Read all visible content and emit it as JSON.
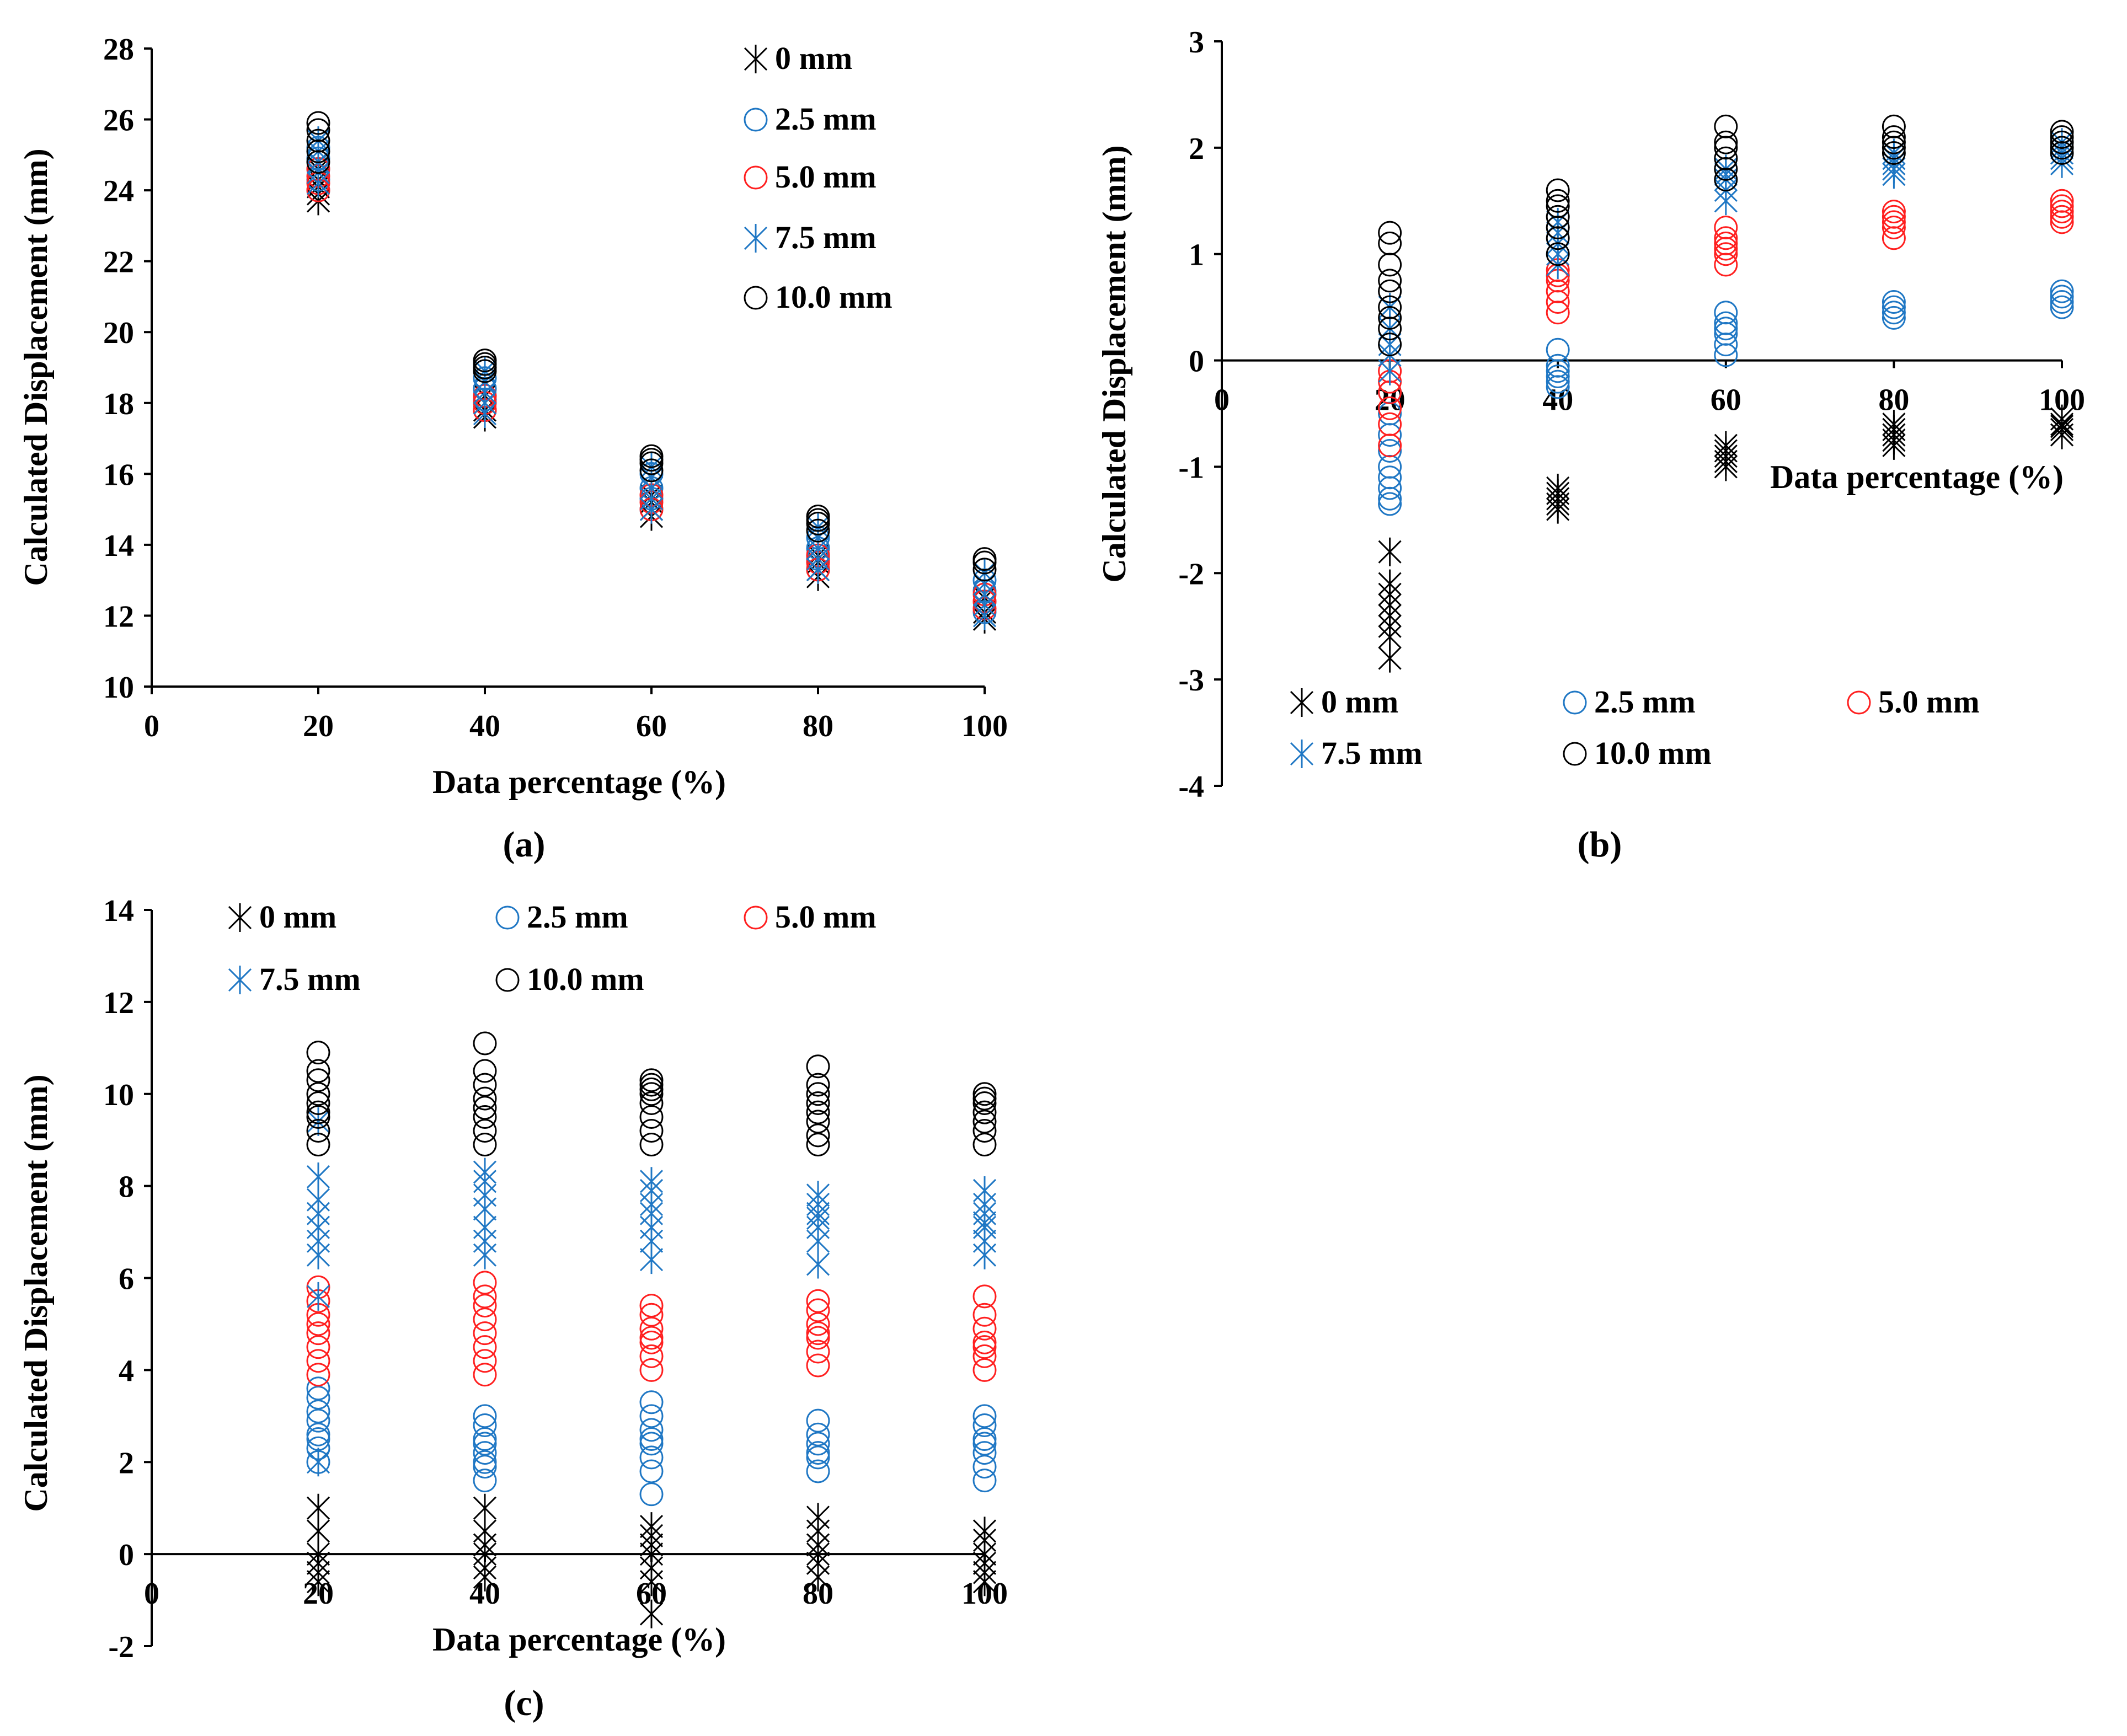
{
  "chart_data": [
    {
      "type": "scatter",
      "panel_label": "a",
      "title": "",
      "xlabel": "Data percentage (%)",
      "ylabel": "Calculated Displacement (mm)",
      "xlim": [
        0,
        100
      ],
      "ylim": [
        10,
        28
      ],
      "xticks": [
        "0",
        "20",
        "40",
        "60",
        "80",
        "100"
      ],
      "yticks": [
        "10",
        "12",
        "14",
        "16",
        "18",
        "20",
        "22",
        "24",
        "26",
        "28"
      ],
      "legend_position": "top-right",
      "legend_columns": 1,
      "series": [
        {
          "name": "0 mm",
          "marker": "star",
          "color": "#000000",
          "x": [
            20,
            20,
            20,
            20,
            20,
            40,
            40,
            40,
            40,
            60,
            60,
            60,
            60,
            60,
            80,
            80,
            80,
            80,
            100,
            100,
            100,
            100
          ],
          "y": [
            23.7,
            23.9,
            24.1,
            24.3,
            24.6,
            17.6,
            17.8,
            18.0,
            18.2,
            14.8,
            15.0,
            15.2,
            15.4,
            15.6,
            13.1,
            13.3,
            13.5,
            13.7,
            11.9,
            12.1,
            12.3,
            12.5
          ]
        },
        {
          "name": "2.5 mm",
          "marker": "circle",
          "color": "#1f77c4",
          "x": [
            20,
            20,
            20,
            20,
            20,
            40,
            40,
            40,
            40,
            60,
            60,
            60,
            60,
            80,
            80,
            80,
            80,
            100,
            100,
            100,
            100
          ],
          "y": [
            24.0,
            24.3,
            24.6,
            24.9,
            25.2,
            17.8,
            18.1,
            18.4,
            18.7,
            15.0,
            15.3,
            15.6,
            16.0,
            13.3,
            13.6,
            13.9,
            14.2,
            12.1,
            12.4,
            12.7,
            13.0
          ]
        },
        {
          "name": "5.0 mm",
          "marker": "circle",
          "color": "#ff1f1f",
          "x": [
            20,
            20,
            20,
            20,
            40,
            40,
            40,
            60,
            60,
            60,
            80,
            80,
            80,
            100,
            100,
            100
          ],
          "y": [
            24.0,
            24.2,
            24.4,
            24.6,
            17.8,
            18.0,
            18.2,
            15.0,
            15.2,
            15.4,
            13.3,
            13.5,
            13.7,
            12.2,
            12.4,
            12.6
          ]
        },
        {
          "name": "7.5 mm",
          "marker": "star",
          "color": "#1f77c4",
          "x": [
            20,
            20,
            20,
            20,
            20,
            40,
            40,
            40,
            40,
            40,
            60,
            60,
            60,
            60,
            60,
            80,
            80,
            80,
            80,
            80,
            100,
            100,
            100,
            100,
            100
          ],
          "y": [
            24.2,
            24.5,
            24.8,
            25.1,
            25.4,
            17.7,
            18.0,
            18.3,
            18.6,
            18.9,
            15.0,
            15.3,
            15.6,
            15.9,
            16.2,
            13.3,
            13.6,
            13.9,
            14.2,
            14.5,
            12.0,
            12.3,
            12.6,
            12.9,
            13.2
          ]
        },
        {
          "name": "10.0 mm",
          "marker": "circle",
          "color": "#000000",
          "x": [
            20,
            20,
            20,
            20,
            20,
            40,
            40,
            40,
            40,
            60,
            60,
            60,
            60,
            80,
            80,
            80,
            80,
            100,
            100,
            100
          ],
          "y": [
            24.8,
            25.1,
            25.4,
            25.7,
            25.9,
            18.9,
            19.0,
            19.1,
            19.2,
            16.1,
            16.3,
            16.4,
            16.5,
            14.4,
            14.6,
            14.7,
            14.8,
            13.3,
            13.5,
            13.6
          ]
        }
      ]
    },
    {
      "type": "scatter",
      "panel_label": "b",
      "title": "",
      "xlabel": "Data percentage (%)",
      "ylabel": "Calculated Displacement (mm)",
      "xlim": [
        0,
        100
      ],
      "ylim": [
        -4,
        3
      ],
      "xticks": [
        "0",
        "20",
        "40",
        "60",
        "80",
        "100"
      ],
      "yticks": [
        "-4",
        "-3",
        "-2",
        "-1",
        "0",
        "1",
        "2",
        "3"
      ],
      "legend_position": "bottom",
      "legend_columns": 3,
      "series": [
        {
          "name": "0 mm",
          "marker": "star",
          "color": "#000000",
          "x": [
            20,
            20,
            20,
            20,
            20,
            20,
            20,
            20,
            40,
            40,
            40,
            40,
            40,
            60,
            60,
            60,
            60,
            60,
            80,
            80,
            80,
            80,
            80,
            100,
            100,
            100,
            100,
            100
          ],
          "y": [
            -1.8,
            -2.1,
            -2.2,
            -2.3,
            -2.4,
            -2.5,
            -2.6,
            -2.8,
            -1.2,
            -1.25,
            -1.3,
            -1.35,
            -1.4,
            -0.8,
            -0.85,
            -0.9,
            -0.95,
            -1.0,
            -0.6,
            -0.65,
            -0.7,
            -0.75,
            -0.8,
            -0.55,
            -0.6,
            -0.62,
            -0.65,
            -0.7
          ]
        },
        {
          "name": "2.5 mm",
          "marker": "circle",
          "color": "#1f77c4",
          "x": [
            20,
            20,
            20,
            20,
            20,
            20,
            20,
            20,
            20,
            40,
            40,
            40,
            40,
            40,
            40,
            60,
            60,
            60,
            60,
            60,
            60,
            80,
            80,
            80,
            80,
            100,
            100,
            100,
            100
          ],
          "y": [
            -0.3,
            -0.5,
            -0.7,
            -0.85,
            -1.0,
            -1.1,
            -1.2,
            -1.3,
            -1.35,
            0.1,
            -0.05,
            -0.1,
            -0.15,
            -0.2,
            -0.25,
            0.05,
            0.15,
            0.25,
            0.3,
            0.35,
            0.45,
            0.4,
            0.45,
            0.5,
            0.55,
            0.5,
            0.55,
            0.6,
            0.65
          ]
        },
        {
          "name": "5.0 mm",
          "marker": "circle",
          "color": "#ff1f1f",
          "x": [
            20,
            20,
            20,
            20,
            20,
            20,
            40,
            40,
            40,
            40,
            40,
            40,
            60,
            60,
            60,
            60,
            60,
            60,
            80,
            80,
            80,
            80,
            80,
            100,
            100,
            100,
            100,
            100
          ],
          "y": [
            -0.1,
            -0.2,
            -0.3,
            -0.45,
            -0.6,
            -0.8,
            0.45,
            0.55,
            0.65,
            0.75,
            0.8,
            0.85,
            0.9,
            1.0,
            1.05,
            1.1,
            1.15,
            1.25,
            1.15,
            1.25,
            1.3,
            1.35,
            1.4,
            1.3,
            1.35,
            1.4,
            1.45,
            1.5
          ]
        },
        {
          "name": "7.5 mm",
          "marker": "star",
          "color": "#1f77c4",
          "x": [
            20,
            20,
            20,
            20,
            20,
            40,
            40,
            40,
            40,
            40,
            60,
            60,
            60,
            60,
            60,
            80,
            80,
            80,
            80,
            80,
            100,
            100,
            100,
            100,
            100
          ],
          "y": [
            -0.1,
            0.05,
            0.15,
            0.3,
            0.5,
            0.9,
            1.0,
            1.1,
            1.2,
            1.3,
            1.5,
            1.6,
            1.7,
            1.75,
            1.8,
            1.75,
            1.8,
            1.85,
            1.9,
            1.95,
            1.85,
            1.9,
            1.95,
            2.0,
            2.05
          ]
        },
        {
          "name": "10.0 mm",
          "marker": "circle",
          "color": "#000000",
          "x": [
            20,
            20,
            20,
            20,
            20,
            20,
            20,
            20,
            20,
            40,
            40,
            40,
            40,
            40,
            40,
            40,
            60,
            60,
            60,
            60,
            60,
            60,
            80,
            80,
            80,
            80,
            80,
            100,
            100,
            100,
            100,
            100
          ],
          "y": [
            0.15,
            0.3,
            0.4,
            0.5,
            0.65,
            0.75,
            0.9,
            1.1,
            1.2,
            1.0,
            1.15,
            1.25,
            1.35,
            1.45,
            1.5,
            1.6,
            1.7,
            1.8,
            1.9,
            2.0,
            2.05,
            2.2,
            1.95,
            2.0,
            2.05,
            2.1,
            2.2,
            1.95,
            2.0,
            2.05,
            2.1,
            2.15
          ]
        }
      ]
    },
    {
      "type": "scatter",
      "panel_label": "c",
      "title": "",
      "xlabel": "Data percentage (%)",
      "ylabel": "Calculated Displacement (mm)",
      "xlim": [
        0,
        100
      ],
      "ylim": [
        -2,
        14
      ],
      "xticks": [
        "0",
        "20",
        "40",
        "60",
        "80",
        "100"
      ],
      "yticks": [
        "-2",
        "0",
        "2",
        "4",
        "6",
        "8",
        "10",
        "12",
        "14"
      ],
      "legend_position": "top",
      "legend_columns": 3,
      "series": [
        {
          "name": "0 mm",
          "marker": "star",
          "color": "#000000",
          "x": [
            20,
            20,
            20,
            20,
            20,
            20,
            40,
            40,
            40,
            40,
            40,
            40,
            60,
            60,
            60,
            60,
            60,
            60,
            60,
            80,
            80,
            80,
            80,
            80,
            80,
            100,
            100,
            100,
            100,
            100,
            100
          ],
          "y": [
            1.0,
            0.5,
            0.0,
            -0.2,
            -0.4,
            -0.6,
            1.0,
            0.5,
            0.2,
            0.0,
            -0.3,
            -0.5,
            0.6,
            0.4,
            0.2,
            0.0,
            -0.3,
            -0.6,
            -1.3,
            0.8,
            0.5,
            0.2,
            0.0,
            -0.2,
            -0.5,
            0.5,
            0.3,
            0.0,
            -0.2,
            -0.4,
            -0.6
          ]
        },
        {
          "name": "2.5 mm",
          "marker": "circle",
          "color": "#1f77c4",
          "x": [
            20,
            20,
            20,
            20,
            20,
            20,
            20,
            20,
            40,
            40,
            40,
            40,
            40,
            40,
            40,
            40,
            60,
            60,
            60,
            60,
            60,
            60,
            60,
            60,
            80,
            80,
            80,
            80,
            80,
            80,
            100,
            100,
            100,
            100,
            100,
            100,
            100
          ],
          "y": [
            2.0,
            2.3,
            2.6,
            2.9,
            3.1,
            3.4,
            3.6,
            2.5,
            1.6,
            1.9,
            2.2,
            2.5,
            2.8,
            3.0,
            2.0,
            2.4,
            1.3,
            1.8,
            2.1,
            2.4,
            2.7,
            3.0,
            3.3,
            2.5,
            1.8,
            2.1,
            2.4,
            2.6,
            2.9,
            2.2,
            1.6,
            1.9,
            2.2,
            2.5,
            2.8,
            3.0,
            2.4
          ]
        },
        {
          "name": "5.0 mm",
          "marker": "circle",
          "color": "#ff1f1f",
          "x": [
            20,
            20,
            20,
            20,
            20,
            20,
            20,
            20,
            40,
            40,
            40,
            40,
            40,
            40,
            40,
            40,
            60,
            60,
            60,
            60,
            60,
            60,
            60,
            80,
            80,
            80,
            80,
            80,
            80,
            80,
            100,
            100,
            100,
            100,
            100,
            100,
            100
          ],
          "y": [
            3.9,
            4.2,
            4.5,
            4.8,
            5.0,
            5.2,
            5.5,
            5.8,
            3.9,
            4.2,
            4.5,
            4.8,
            5.1,
            5.4,
            5.6,
            5.9,
            4.0,
            4.3,
            4.6,
            4.9,
            5.2,
            5.4,
            4.7,
            4.1,
            4.4,
            4.7,
            5.0,
            5.3,
            5.5,
            4.8,
            4.0,
            4.3,
            4.6,
            4.9,
            5.2,
            5.6,
            4.5
          ]
        },
        {
          "name": "7.5 mm",
          "marker": "star",
          "color": "#1f77c4",
          "x": [
            20,
            20,
            20,
            20,
            20,
            20,
            20,
            20,
            20,
            40,
            40,
            40,
            40,
            40,
            40,
            40,
            60,
            60,
            60,
            60,
            60,
            60,
            60,
            80,
            80,
            80,
            80,
            80,
            80,
            80,
            100,
            100,
            100,
            100,
            100,
            100,
            100
          ],
          "y": [
            2.0,
            5.6,
            6.5,
            6.8,
            7.1,
            7.4,
            7.7,
            8.2,
            9.4,
            6.5,
            6.8,
            7.1,
            7.5,
            7.8,
            8.1,
            8.3,
            6.4,
            6.8,
            7.1,
            7.4,
            7.6,
            7.9,
            8.1,
            6.3,
            6.8,
            7.1,
            7.4,
            7.6,
            7.8,
            7.3,
            6.5,
            6.8,
            7.1,
            7.4,
            7.6,
            7.9,
            7.2
          ]
        },
        {
          "name": "10.0 mm",
          "marker": "circle",
          "color": "#000000",
          "x": [
            20,
            20,
            20,
            20,
            20,
            20,
            20,
            20,
            20,
            40,
            40,
            40,
            40,
            40,
            40,
            40,
            40,
            60,
            60,
            60,
            60,
            60,
            60,
            60,
            60,
            80,
            80,
            80,
            80,
            80,
            80,
            80,
            80,
            100,
            100,
            100,
            100,
            100,
            100,
            100
          ],
          "y": [
            8.9,
            9.2,
            9.5,
            9.8,
            10.0,
            10.3,
            10.5,
            10.9,
            9.6,
            8.9,
            9.2,
            9.5,
            9.7,
            9.9,
            10.2,
            10.5,
            11.1,
            8.9,
            9.2,
            9.5,
            9.8,
            10.0,
            10.1,
            10.2,
            10.3,
            8.9,
            9.1,
            9.4,
            9.6,
            9.8,
            10.0,
            10.2,
            10.6,
            8.9,
            9.2,
            9.4,
            9.6,
            9.8,
            9.9,
            10.0
          ]
        }
      ]
    }
  ]
}
